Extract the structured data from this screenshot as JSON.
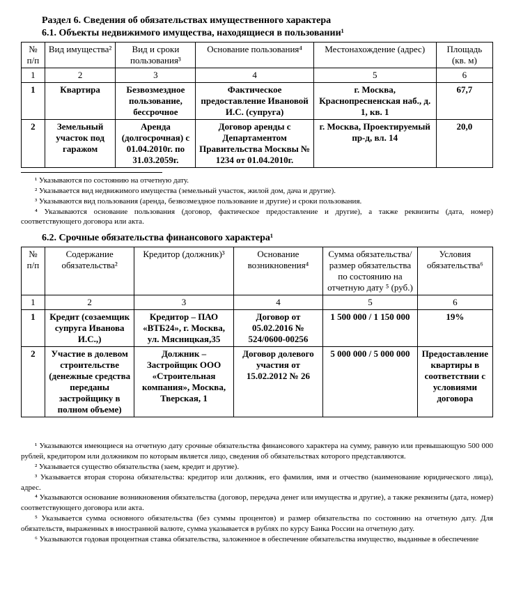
{
  "section6": {
    "title": "Раздел 6. Сведения об обязательствах имущественного характера",
    "sub61": "6.1. Объекты недвижимого имущества, находящиеся в пользовании¹",
    "table61": {
      "headers": {
        "c1": "№ п/п",
        "c2": "Вид имущества²",
        "c3": "Вид и сроки пользования³",
        "c4": "Основание пользования⁴",
        "c5": "Местонахождение (адрес)",
        "c6": "Площадь (кв. м)"
      },
      "nums": {
        "n1": "1",
        "n2": "2",
        "n3": "3",
        "n4": "4",
        "n5": "5",
        "n6": "6"
      },
      "rows": [
        {
          "n": "1",
          "kind": "Квартира",
          "usage": "Безвозмездное пользование, бессрочное",
          "basis": "Фактическое предоставление Ивановой И.С. (супруга)",
          "addr": "г. Москва, Краснопресненская наб., д. 1, кв. 1",
          "area": "67,7"
        },
        {
          "n": "2",
          "kind": "Земельный участок под гаражом",
          "usage": "Аренда (долгосрочная) с 01.04.2010г. по 31.03.2059г.",
          "basis": "Договор аренды с Департаментом Правительства Москвы № 1234 от 01.04.2010г.",
          "addr": "г. Москва, Проектируемый пр-д, вл. 14",
          "area": "20,0"
        }
      ]
    },
    "footnotes61": {
      "f1": "¹ Указываются по состоянию на отчетную дату.",
      "f2": "² Указывается вид недвижимого имущества (земельный участок, жилой дом, дача и другие).",
      "f3": "³ Указываются вид пользования (аренда, безвозмездное пользование и другие) и сроки пользования.",
      "f4": "⁴ Указываются основание пользования (договор, фактическое предоставление и другие), а также реквизиты (дата, номер) соответствующего договора или акта."
    },
    "sub62": "6.2. Срочные обязательства финансового характера¹",
    "table62": {
      "headers": {
        "c1": "№ п/п",
        "c2": "Содержание обязательства²",
        "c3": "Кредитор (должник)³",
        "c4": "Основание возникновения⁴",
        "c5": "Сумма обязательства/размер обязательства по состоянию на отчетную дату ⁵ (руб.)",
        "c6": "Условия обязательства⁶"
      },
      "nums": {
        "n1": "1",
        "n2": "2",
        "n3": "3",
        "n4": "4",
        "n5": "5",
        "n6": "6"
      },
      "rows": [
        {
          "n": "1",
          "content": "Кредит (созаемщик супруга Иванова И.С.,)",
          "creditor": "Кредитор – ПАО «ВТБ24», г. Москва, ул. Мясницкая,35",
          "basis": "Договор от 05.02.2016 № 524/0600-00256",
          "sum": "1 500 000 / 1 150 000",
          "terms": "19%"
        },
        {
          "n": "2",
          "content": "Участие в долевом строительстве (денежные средства переданы застройщику в полном объеме)",
          "creditor": "Должник – Застройщик ООО «Строительная компания», Москва, Тверская, 1",
          "basis": "Договор долевого участия от 15.02.2012 № 26",
          "sum": "5 000 000 / 5 000 000",
          "terms": "Предоставление квартиры в соответствии с условиями договора"
        }
      ]
    },
    "footnotes62": {
      "f1": "¹ Указываются имеющиеся на отчетную дату срочные обязательства финансового характера на сумму, равную или превышающую 500 000 рублей, кредитором или должником по которым является лицо, сведения об обязательствах которого представляются.",
      "f2": "² Указывается существо обязательства (заем, кредит и другие).",
      "f3": "³ Указывается вторая сторона обязательства: кредитор или должник, его фамилия, имя и отчество (наименование юридического лица), адрес.",
      "f4": "⁴ Указываются основание возникновения обязательства (договор, передача денег или имущества и другие), а также реквизиты (дата, номер) соответствующего договора или акта.",
      "f5": "⁵ Указывается сумма основного обязательства (без суммы процентов) и размер обязательства по состоянию на отчетную дату. Для обязательств, выраженных в иностранной валюте, сумма указывается в рублях по курсу Банка России на отчетную дату.",
      "f6": "⁶ Указываются годовая процентная ставка обязательства, заложенное в обеспечение обязательства имущество, выданные в обеспечение"
    }
  },
  "colwidths61": [
    "5%",
    "15%",
    "17%",
    "25%",
    "26%",
    "12%"
  ],
  "colwidths62": [
    "5%",
    "19%",
    "21%",
    "19%",
    "20%",
    "16%"
  ]
}
